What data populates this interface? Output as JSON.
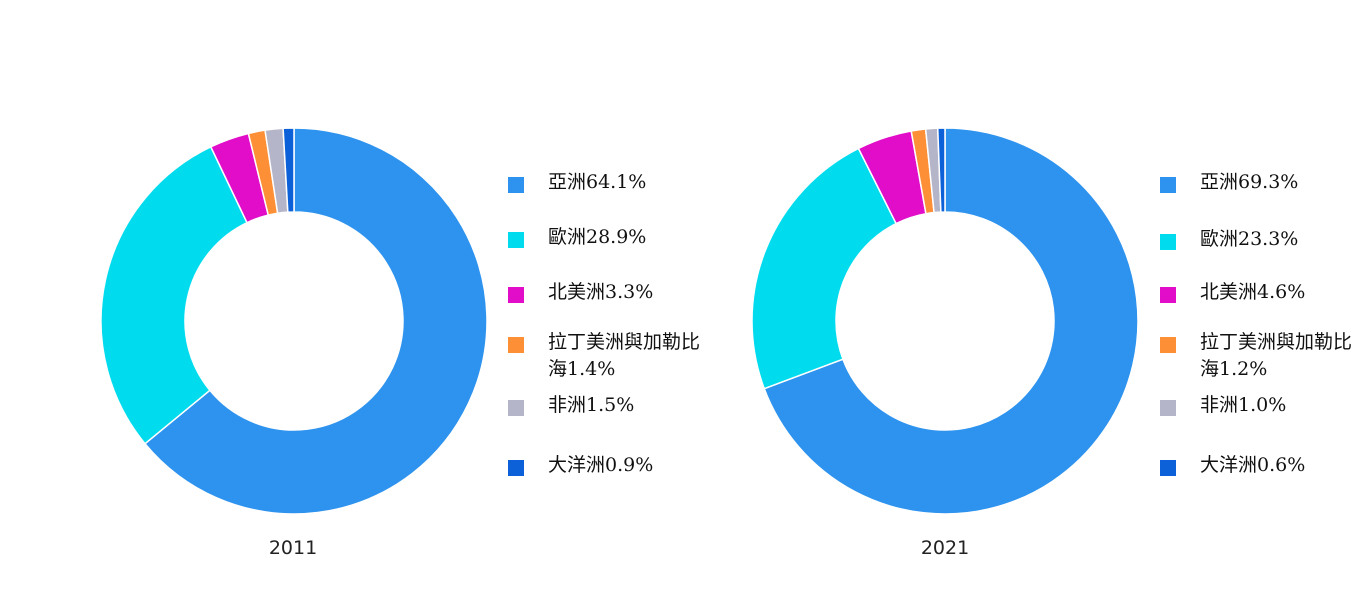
{
  "chart_data": [
    {
      "type": "pie",
      "variant": "donut",
      "title": "2011",
      "legend_position": "right",
      "slices": [
        {
          "label": "亞洲64.1%",
          "value": 64.1,
          "color": "#2e93ee"
        },
        {
          "label": "歐洲28.9%",
          "value": 28.9,
          "color": "#00dcee"
        },
        {
          "label": "北美洲3.3%",
          "value": 3.3,
          "color": "#e10dc9"
        },
        {
          "label": "拉丁美洲與加勒比海1.4%",
          "value": 1.4,
          "color": "#fd8f37"
        },
        {
          "label": "非洲1.5%",
          "value": 1.5,
          "color": "#b5b5c9"
        },
        {
          "label": "大洋洲0.9%",
          "value": 0.9,
          "color": "#0d61d8"
        }
      ]
    },
    {
      "type": "pie",
      "variant": "donut",
      "title": "2021",
      "legend_position": "right",
      "slices": [
        {
          "label": "亞洲69.3%",
          "value": 69.3,
          "color": "#2e93ee"
        },
        {
          "label": "歐洲23.3%",
          "value": 23.3,
          "color": "#00dcee"
        },
        {
          "label": "北美洲4.6%",
          "value": 4.6,
          "color": "#e10dc9"
        },
        {
          "label": "拉丁美洲與加勒比海1.2%",
          "value": 1.2,
          "color": "#fd8f37"
        },
        {
          "label": "非洲1.0%",
          "value": 1.0,
          "color": "#b5b5c9"
        },
        {
          "label": "大洋洲0.6%",
          "value": 0.6,
          "color": "#0d61d8"
        }
      ]
    }
  ]
}
